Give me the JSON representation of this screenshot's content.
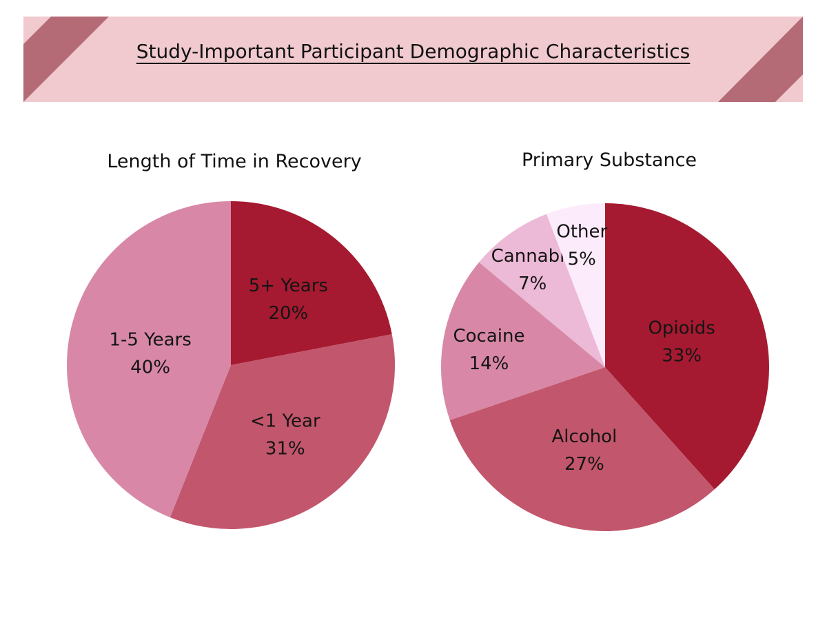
{
  "page_title": "Study-Important Participant Demographic Characteristics",
  "colors": {
    "banner_bg": "#f1cad0",
    "banner_stripe": "#b46b75"
  },
  "chart_data": [
    {
      "type": "pie",
      "title": "Length of Time in Recovery",
      "slices": [
        {
          "label": "5+ Years",
          "value": 20,
          "display": "20%",
          "color": "#a51a30"
        },
        {
          "label": "<1 Year",
          "value": 31,
          "display": "31%",
          "color": "#c2566c"
        },
        {
          "label": "1-5 Years",
          "value": 40,
          "display": "40%",
          "color": "#d888a6"
        }
      ],
      "start": "top, clockwise"
    },
    {
      "type": "pie",
      "title": "Primary Substance",
      "slices": [
        {
          "label": "Opioids",
          "value": 33,
          "display": "33%",
          "color": "#a51a30"
        },
        {
          "label": "Alcohol",
          "value": 27,
          "display": "27%",
          "color": "#c2566c"
        },
        {
          "label": "Cocaine",
          "value": 14,
          "display": "14%",
          "color": "#d888a6"
        },
        {
          "label": "Cannabis",
          "value": 7,
          "display": "7%",
          "color": "#ecb9d6"
        },
        {
          "label": "Other",
          "value": 5,
          "display": "5%",
          "color": "#fcebfa"
        }
      ],
      "start": "top, clockwise"
    }
  ]
}
